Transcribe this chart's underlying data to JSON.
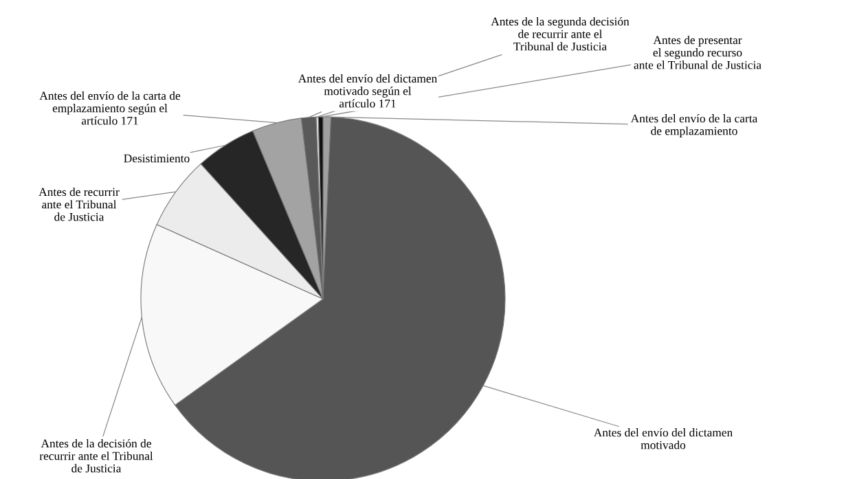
{
  "chart_data": {
    "type": "pie",
    "categories": [
      "Antes del envío de la carta\nde emplazamiento",
      "Antes del envío del dictamen\nmotivado",
      "Antes de la decisión de\nrecurrir ante el Tribunal\nde Justicia",
      "Antes de recurrir\nante el Tribunal\nde Justicia",
      "Desistimiento",
      "Antes del envío de la carta de\nemplazamiento según el\nartículo 171",
      "Antes del envío del dictamen\nmotivado según el\nartículo 171",
      "Antes de la segunda decisión\nde recurrir ante el\nTribunal de Justicia",
      "Antes de presentar\nel segundo recurso\nante el Tribunal de Justicia"
    ],
    "values": [
      0.7,
      64.4,
      16.6,
      6.6,
      5.4,
      4.4,
      1.3,
      0.2,
      0.4
    ],
    "colors": [
      "#a0a0a0",
      "#555555",
      "#f8f8f8",
      "#ececec",
      "#262626",
      "#a3a3a3",
      "#595959",
      "#dddddd",
      "#111111"
    ]
  }
}
